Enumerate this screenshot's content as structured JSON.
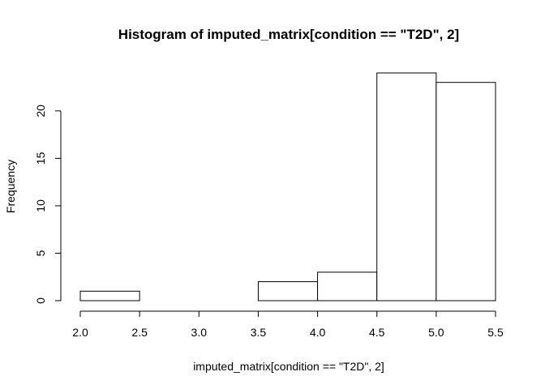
{
  "chart_data": {
    "type": "bar",
    "title": "Histogram of imputed_matrix[condition == \"T2D\", 2]",
    "xlabel": "imputed_matrix[condition == \"T2D\", 2]",
    "ylabel": "Frequency",
    "bins": [
      {
        "start": 2.0,
        "end": 2.5,
        "count": 1
      },
      {
        "start": 2.5,
        "end": 3.0,
        "count": 0
      },
      {
        "start": 3.0,
        "end": 3.5,
        "count": 0
      },
      {
        "start": 3.5,
        "end": 4.0,
        "count": 2
      },
      {
        "start": 4.0,
        "end": 4.5,
        "count": 3
      },
      {
        "start": 4.5,
        "end": 5.0,
        "count": 24
      },
      {
        "start": 5.0,
        "end": 5.5,
        "count": 23
      }
    ],
    "x_ticks": [
      "2.0",
      "2.5",
      "3.0",
      "3.5",
      "4.0",
      "4.5",
      "5.0",
      "5.5"
    ],
    "y_ticks": [
      "0",
      "5",
      "10",
      "15",
      "20"
    ],
    "xlim": [
      2.0,
      5.5
    ],
    "ylim": [
      0,
      24
    ],
    "grid": false
  }
}
